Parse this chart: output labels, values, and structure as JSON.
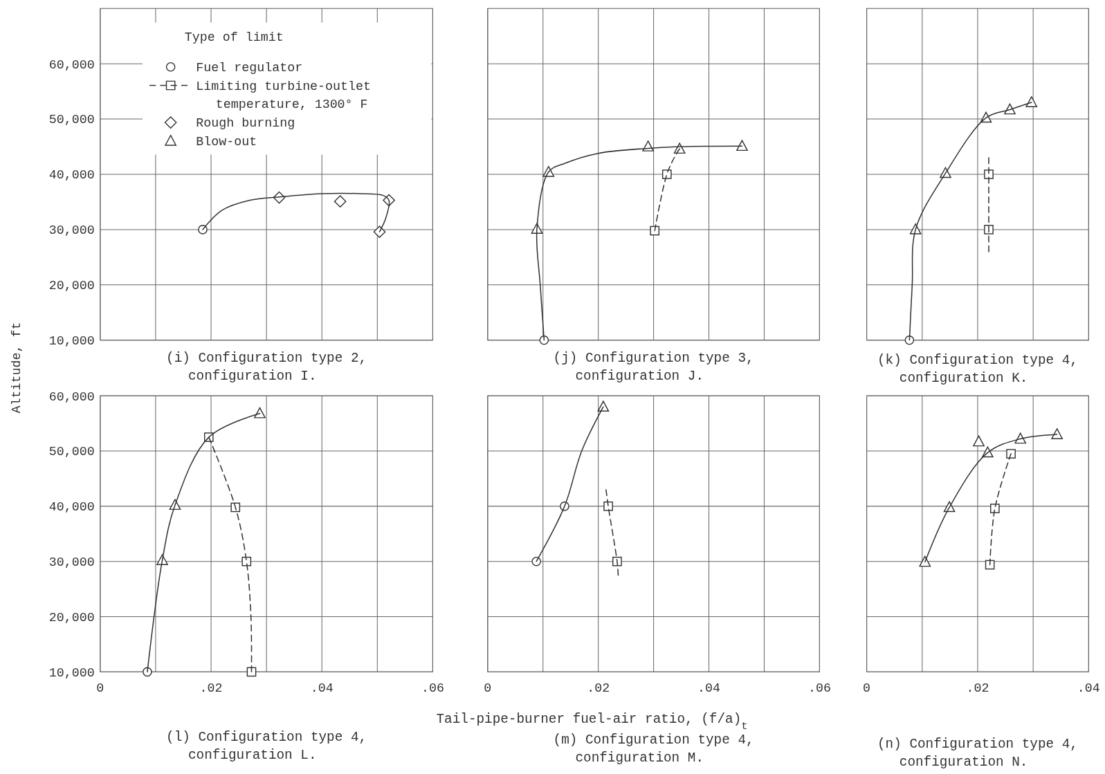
{
  "chart_data": [
    {
      "type": "scatter",
      "title": "(i) Configuration type 2, configuration I.",
      "ylabel": "Altitude, ft",
      "legend_title": "Type of limit",
      "legend": "top",
      "grid": true,
      "tick_labels": "y",
      "xlim": [
        0,
        0.06
      ],
      "ylim": [
        10000,
        70000
      ],
      "xticks": [
        0,
        0.01,
        0.02,
        0.03,
        0.04,
        0.05,
        0.06
      ],
      "yticks": [
        {
          "value": 10000,
          "label": "10,000"
        },
        {
          "value": 20000,
          "label": "20,000"
        },
        {
          "value": 30000,
          "label": "30,000"
        },
        {
          "value": 40000,
          "label": "40,000"
        },
        {
          "value": 50000,
          "label": "50,000"
        },
        {
          "value": 60000,
          "label": "60,000"
        }
      ],
      "series": [
        {
          "name": "Fuel regulator",
          "marker": "circle",
          "color": "#333333",
          "x": [
            0.0185
          ],
          "values": [
            30000
          ]
        },
        {
          "name": "Limiting turbine-outlet temperature, 1300° F",
          "type": "line",
          "marker": "square",
          "line_style": "dashed",
          "color": "#333333"
        },
        {
          "name": "Rough burning",
          "marker": "diamond",
          "color": "#333333",
          "x": [
            0.0323,
            0.0433,
            0.0504,
            0.0521
          ],
          "values": [
            35800,
            35100,
            29600,
            35300
          ]
        },
        {
          "name": "Blow-out",
          "marker": "triangle",
          "color": "#333333"
        },
        {
          "type": "line",
          "marker": "none",
          "line_style": "solid",
          "color": "#333333",
          "x": [
            0.0185,
            0.022,
            0.027,
            0.0323,
            0.04,
            0.047,
            0.051,
            0.0521,
            0.0515,
            0.0504
          ],
          "values": [
            30000,
            33500,
            35300,
            35900,
            36500,
            36500,
            36200,
            35300,
            32000,
            29600
          ]
        }
      ]
    },
    {
      "type": "scatter",
      "title": "(j) Configuration type 3, configuration J.",
      "grid": true,
      "tick_labels": false,
      "xlim": [
        0,
        0.06
      ],
      "ylim": [
        10000,
        70000
      ],
      "xticks": [
        0,
        0.01,
        0.02,
        0.03,
        0.04,
        0.05,
        0.06
      ],
      "yticks": [
        10000,
        20000,
        30000,
        40000,
        50000,
        60000
      ],
      "series": [
        {
          "marker": "circle",
          "color": "#333333",
          "x": [
            0.0102
          ],
          "values": [
            10000
          ]
        },
        {
          "marker": "triangle",
          "color": "#333333",
          "x": [
            0.0089,
            0.011,
            0.029,
            0.0347,
            0.046
          ],
          "values": [
            30100,
            40400,
            45000,
            44600,
            45100
          ]
        },
        {
          "marker": "square",
          "color": "#333333",
          "x": [
            0.0302,
            0.0324
          ],
          "values": [
            29800,
            40000
          ]
        },
        {
          "type": "line",
          "marker": "none",
          "line_style": "solid",
          "color": "#333333",
          "x": [
            0.0102,
            0.0095,
            0.0089,
            0.011,
            0.014,
            0.02,
            0.029,
            0.0347,
            0.046
          ],
          "values": [
            10000,
            20000,
            30100,
            40400,
            42000,
            43800,
            44700,
            45000,
            45100
          ]
        },
        {
          "type": "line",
          "marker": "none",
          "line_style": "dashed",
          "color": "#333333",
          "x": [
            0.0302,
            0.0324,
            0.034,
            0.0347
          ],
          "values": [
            29800,
            40000,
            43500,
            44600
          ]
        }
      ]
    },
    {
      "type": "scatter",
      "title": "(k) Configuration type 4, configuration K.",
      "grid": true,
      "tick_labels": false,
      "xlim": [
        0,
        0.04
      ],
      "ylim": [
        10000,
        70000
      ],
      "xticks": [
        0,
        0.01,
        0.02,
        0.03,
        0.04
      ],
      "yticks": [
        10000,
        20000,
        30000,
        40000,
        50000,
        60000
      ],
      "series": [
        {
          "marker": "circle",
          "color": "#333333",
          "x": [
            0.0077
          ],
          "values": [
            10000
          ]
        },
        {
          "marker": "triangle",
          "color": "#333333",
          "x": [
            0.0088,
            0.0142,
            0.0215,
            0.0258,
            0.0297
          ],
          "values": [
            30000,
            40200,
            50200,
            51700,
            53000
          ]
        },
        {
          "marker": "square",
          "color": "#333333",
          "x": [
            0.022,
            0.022
          ],
          "values": [
            40000,
            30000
          ]
        },
        {
          "type": "line",
          "marker": "none",
          "line_style": "solid",
          "color": "#333333",
          "x": [
            0.0077,
            0.0082,
            0.0088,
            0.0142,
            0.0215,
            0.0258,
            0.0297
          ],
          "values": [
            10000,
            20000,
            30000,
            40200,
            50200,
            51700,
            53000
          ]
        },
        {
          "type": "line",
          "marker": "none",
          "line_style": "dashed",
          "color": "#333333",
          "x": [
            0.022,
            0.022
          ],
          "values": [
            26000,
            43000
          ]
        }
      ]
    },
    {
      "type": "scatter",
      "title": "(l) Configuration type 4, configuration L.",
      "grid": true,
      "xlim": [
        0,
        0.06
      ],
      "ylim": [
        10000,
        60000
      ],
      "xticks": [
        0,
        {
          "value": 0.01,
          "label": null
        },
        {
          "value": 0.02,
          "label": ".02"
        },
        {
          "value": 0.03,
          "label": null
        },
        {
          "value": 0.04,
          "label": ".04"
        },
        {
          "value": 0.05,
          "label": null
        },
        {
          "value": 0.06,
          "label": ".06"
        }
      ],
      "yticks": [
        {
          "value": 10000,
          "label": "10,000"
        },
        {
          "value": 20000,
          "label": "20,000"
        },
        {
          "value": 30000,
          "label": "30,000"
        },
        {
          "value": 40000,
          "label": "40,000"
        },
        {
          "value": 50000,
          "label": "50,000"
        },
        {
          "value": 60000,
          "label": "60,000"
        }
      ],
      "series": [
        {
          "marker": "circle",
          "color": "#333333",
          "x": [
            0.0085
          ],
          "values": [
            10000
          ]
        },
        {
          "marker": "triangle",
          "color": "#333333",
          "x": [
            0.0112,
            0.0135,
            0.0288
          ],
          "values": [
            30200,
            40200,
            56800
          ]
        },
        {
          "marker": "square",
          "color": "#333333",
          "x": [
            0.0196,
            0.0244,
            0.0264,
            0.0273
          ],
          "values": [
            52500,
            39800,
            30000,
            10000
          ]
        },
        {
          "type": "line",
          "marker": "none",
          "line_style": "solid",
          "color": "#333333",
          "x": [
            0.0085,
            0.0112,
            0.0135,
            0.0196,
            0.0288
          ],
          "values": [
            10000,
            30200,
            40200,
            52500,
            56800
          ]
        },
        {
          "type": "line",
          "marker": "none",
          "line_style": "dashed",
          "color": "#333333",
          "x": [
            0.0196,
            0.0244,
            0.0264,
            0.0272,
            0.0273
          ],
          "values": [
            52500,
            39800,
            30000,
            20000,
            10000
          ]
        }
      ]
    },
    {
      "type": "scatter",
      "title": "(m) Configuration type 4, configuration M.",
      "xlabel": "Tail-pipe-burner fuel-air ratio, (f/a)$_{t}$",
      "grid": true,
      "tick_labels": "x",
      "xlim": [
        0,
        0.06
      ],
      "ylim": [
        10000,
        60000
      ],
      "xticks": [
        0,
        {
          "value": 0.01,
          "label": null
        },
        {
          "value": 0.02,
          "label": ".02"
        },
        {
          "value": 0.03,
          "label": null
        },
        {
          "value": 0.04,
          "label": ".04"
        },
        {
          "value": 0.05,
          "label": null
        },
        {
          "value": 0.06,
          "label": ".06"
        }
      ],
      "yticks": [
        10000,
        20000,
        30000,
        40000,
        50000,
        60000
      ],
      "series": [
        {
          "marker": "circle",
          "color": "#333333",
          "x": [
            0.0088,
            0.0139
          ],
          "values": [
            30000,
            40000
          ]
        },
        {
          "marker": "triangle",
          "color": "#333333",
          "x": [
            0.0209
          ],
          "values": [
            58000
          ]
        },
        {
          "marker": "square",
          "color": "#333333",
          "x": [
            0.0218,
            0.0234
          ],
          "values": [
            40000,
            30000
          ]
        },
        {
          "type": "line",
          "marker": "none",
          "line_style": "solid",
          "color": "#333333",
          "x": [
            0.0088,
            0.0139,
            0.017,
            0.0209
          ],
          "values": [
            30000,
            40000,
            50000,
            58000
          ]
        },
        {
          "type": "line",
          "marker": "none",
          "line_style": "dashed",
          "color": "#333333",
          "x": [
            0.0214,
            0.0218,
            0.0234,
            0.0236
          ],
          "values": [
            43000,
            40000,
            30000,
            27500
          ]
        }
      ]
    },
    {
      "type": "scatter",
      "title": "(n) Configuration type 4, configuration N.",
      "grid": true,
      "tick_labels": "x",
      "xlim": [
        0,
        0.04
      ],
      "ylim": [
        10000,
        60000
      ],
      "xticks": [
        0,
        {
          "value": 0.01,
          "label": null
        },
        {
          "value": 0.02,
          "label": ".02"
        },
        {
          "value": 0.03,
          "label": null
        },
        {
          "value": 0.04,
          "label": ".04"
        }
      ],
      "yticks": [
        10000,
        20000,
        30000,
        40000,
        50000,
        60000
      ],
      "series": [
        {
          "marker": "triangle",
          "color": "#333333",
          "x": [
            0.0105,
            0.0149,
            0.0202,
            0.0218,
            0.0277,
            0.0343
          ],
          "values": [
            29900,
            39800,
            51700,
            49700,
            52200,
            53000
          ]
        },
        {
          "marker": "square",
          "color": "#333333",
          "x": [
            0.0222,
            0.0231,
            0.026
          ],
          "values": [
            29400,
            39600,
            49500
          ]
        },
        {
          "type": "line",
          "marker": "none",
          "line_style": "solid",
          "color": "#333333",
          "x": [
            0.0105,
            0.0149,
            0.0218,
            0.0277,
            0.0343
          ],
          "values": [
            29900,
            39800,
            49700,
            52200,
            53000
          ]
        },
        {
          "type": "line",
          "marker": "none",
          "line_style": "dashed",
          "color": "#333333",
          "x": [
            0.0222,
            0.0231,
            0.026
          ],
          "values": [
            29400,
            39600,
            49500
          ]
        }
      ]
    }
  ]
}
